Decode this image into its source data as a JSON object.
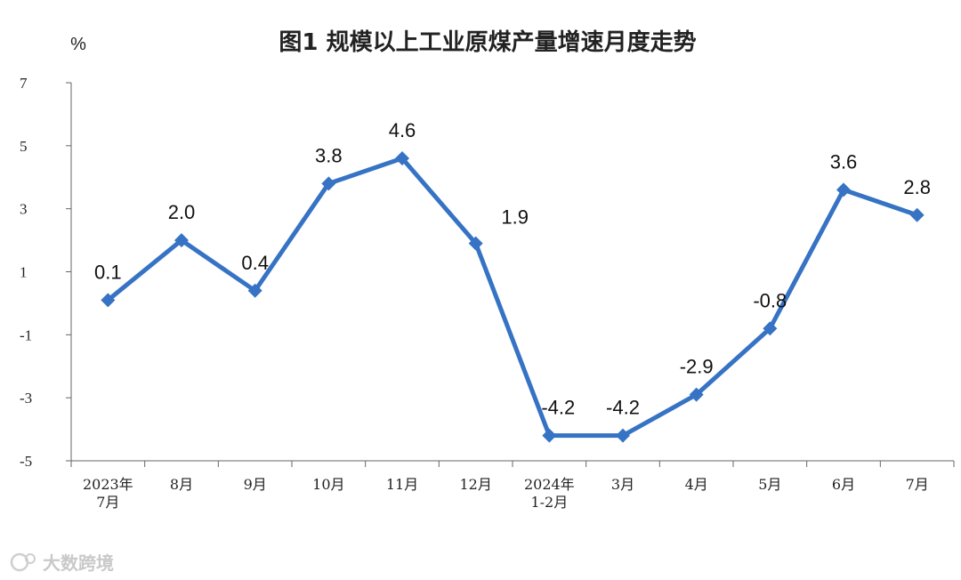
{
  "chart_data": {
    "type": "line",
    "title": "图1  规模以上工业原煤产量增速月度走势",
    "ylabel": "%",
    "xlabel": "",
    "ylim": [
      -5,
      7
    ],
    "yticks": [
      7,
      5,
      3,
      1,
      -1,
      -3,
      -5
    ],
    "grid": false,
    "legend": "none",
    "categories": [
      "2023年\n7月",
      "8月",
      "9月",
      "10月",
      "11月",
      "12月",
      "2024年\n1-2月",
      "3月",
      "4月",
      "5月",
      "6月",
      "7月"
    ],
    "series": [
      {
        "values": [
          0.1,
          2.0,
          0.4,
          3.8,
          4.6,
          1.9,
          -4.2,
          -4.2,
          -2.9,
          -0.8,
          3.6,
          2.8
        ],
        "labels": [
          "0.1",
          "2.0",
          "0.4",
          "3.8",
          "4.6",
          "1.9",
          "-4.2",
          "-4.2",
          "-2.9",
          "-0.8",
          "3.6",
          "2.8"
        ],
        "color": "#3673c4"
      }
    ]
  },
  "watermark": "大数跨境"
}
